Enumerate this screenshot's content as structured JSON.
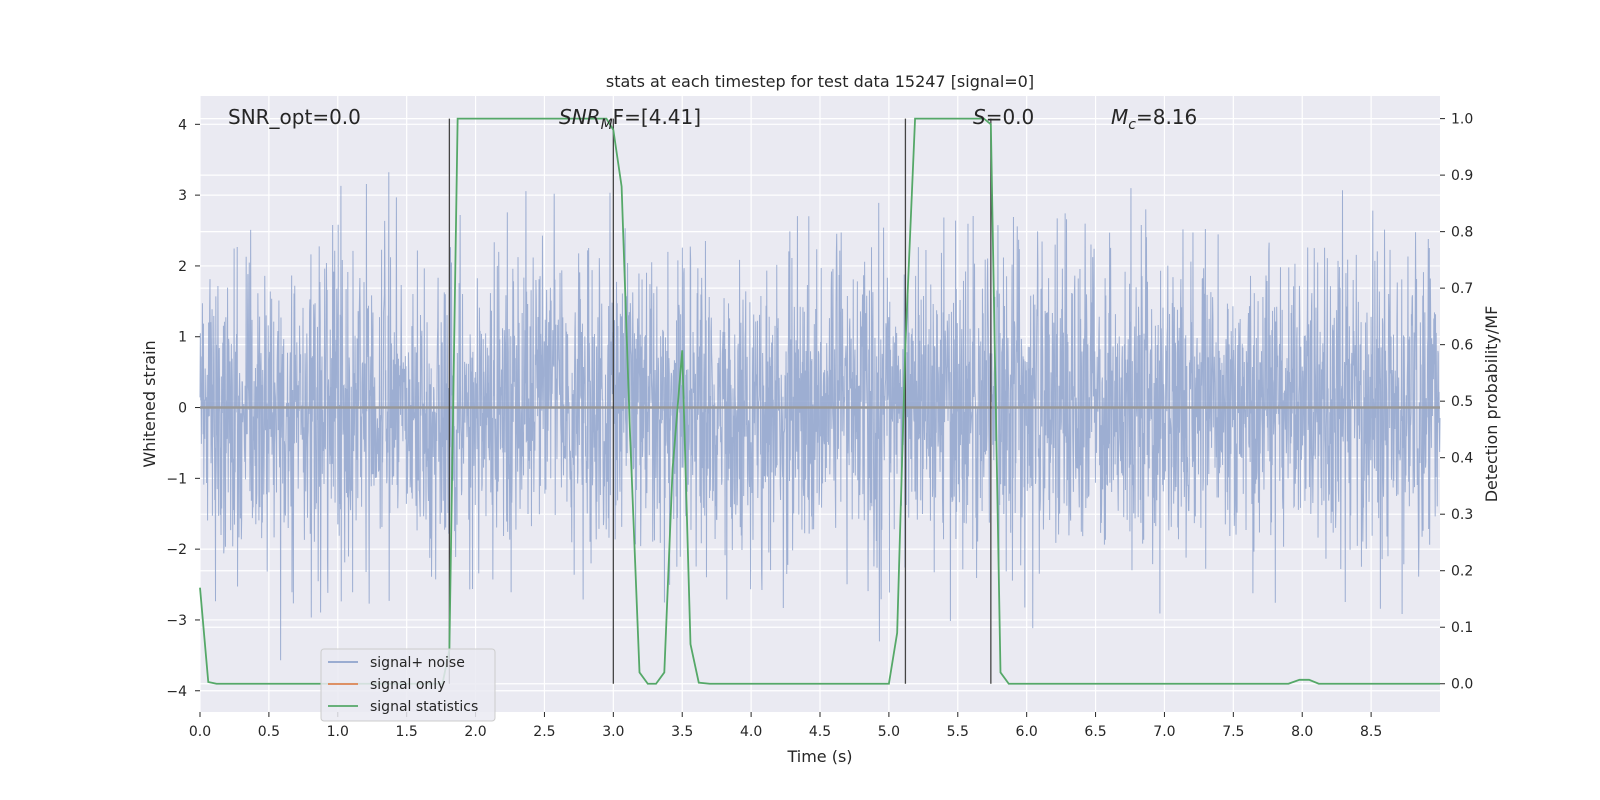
{
  "chart_data": {
    "type": "line",
    "title": "stats at each timestep for test data 15247 [signal=0]",
    "xlabel": "Time (s)",
    "ylabel_left": "Whitened strain",
    "ylabel_right": "Detection probability/MF",
    "xlim": [
      0.0,
      9.0
    ],
    "ylim_left": [
      -4.3,
      4.4
    ],
    "ylim_right": [
      -0.05,
      1.04
    ],
    "grid": true,
    "x_ticks": [
      "0.0",
      "0.5",
      "1.0",
      "1.5",
      "2.0",
      "2.5",
      "3.0",
      "3.5",
      "4.0",
      "4.5",
      "5.0",
      "5.5",
      "6.0",
      "6.5",
      "7.0",
      "7.5",
      "8.0",
      "8.5"
    ],
    "x_tick_values": [
      0.0,
      0.5,
      1.0,
      1.5,
      2.0,
      2.5,
      3.0,
      3.5,
      4.0,
      4.5,
      5.0,
      5.5,
      6.0,
      6.5,
      7.0,
      7.5,
      8.0,
      8.5
    ],
    "y_left_ticks": [
      "4",
      "3",
      "2",
      "1",
      "0",
      "−1",
      "−2",
      "−3",
      "−4"
    ],
    "y_left_tick_values": [
      4,
      3,
      2,
      1,
      0,
      -1,
      -2,
      -3,
      -4
    ],
    "y_right_ticks": [
      "1.0",
      "0.9",
      "0.8",
      "0.7",
      "0.6",
      "0.5",
      "0.4",
      "0.3",
      "0.2",
      "0.1",
      "0.0"
    ],
    "y_right_tick_values": [
      1.0,
      0.9,
      0.8,
      0.7,
      0.6,
      0.5,
      0.4,
      0.3,
      0.2,
      0.1,
      0.0
    ],
    "annotations": {
      "snr_opt": "SNR_opt=0.0",
      "snr_mf_prefix": "SNR",
      "snr_mf_sub": "M",
      "snr_mf_suffix": "F=[4.41]",
      "s_italic": "S",
      "s_value": "=0.0",
      "mc_italic": "M",
      "mc_sub": "c",
      "mc_value": "=8.16"
    },
    "vertical_lines_x": [
      1.81,
      3.0,
      5.12,
      5.74
    ],
    "series": [
      {
        "name": "signal+ noise",
        "color": "#8fa3cc",
        "style": "noise",
        "seed": 15247,
        "sigma": 1.05
      },
      {
        "name": "signal only",
        "color": "#dd8452",
        "values_constant": 0.0
      },
      {
        "name": "signal statistics",
        "color": "#55a868",
        "x": [
          0.0,
          0.06,
          0.12,
          1.5,
          1.76,
          1.81,
          1.87,
          2.3,
          2.95,
          3.0,
          3.06,
          3.12,
          3.19,
          3.25,
          3.31,
          3.37,
          3.43,
          3.5,
          3.56,
          3.62,
          3.7,
          3.8,
          4.5,
          5.0,
          5.06,
          5.12,
          5.19,
          5.5,
          5.69,
          5.74,
          5.81,
          5.87,
          6.0,
          7.9,
          7.98,
          8.05,
          8.12,
          9.0
        ],
        "y": [
          0.17,
          0.003,
          0.0,
          0.0,
          0.0,
          0.06,
          1.0,
          1.0,
          1.0,
          0.98,
          0.88,
          0.45,
          0.02,
          0.0,
          0.0,
          0.02,
          0.38,
          0.59,
          0.07,
          0.002,
          0.0,
          0.0,
          0.0,
          0.0,
          0.09,
          0.6,
          1.0,
          1.0,
          1.0,
          0.99,
          0.02,
          0.0,
          0.0,
          0.0,
          0.007,
          0.007,
          0.0,
          0.0
        ]
      }
    ]
  }
}
